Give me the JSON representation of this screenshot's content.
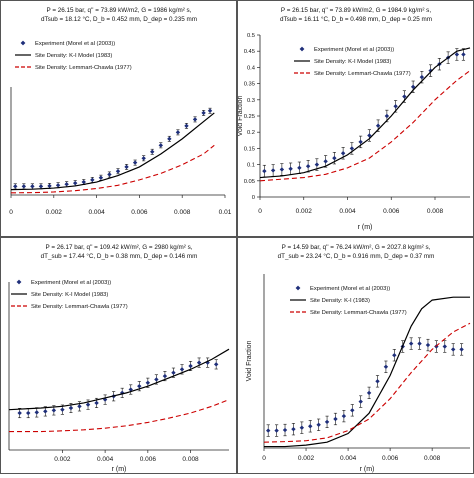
{
  "chart_data": [
    {
      "type": "line",
      "header": [
        "P = 26.15 bar, q'' = 73.89 kW/m2, G = 1986 kg/m² s,",
        "dTsub = 18.12 °C, D_b = 0.452 mm, D_dep = 0.235 mm"
      ],
      "xlabel": "",
      "ylabel": "",
      "xticks": [
        "0",
        "0.002",
        "0.004",
        "0.006",
        "0.008",
        "0.01"
      ],
      "yticks": [],
      "xlim": [
        0,
        0.01
      ],
      "ylim": [
        0,
        0.5
      ],
      "legend": "top-left",
      "series": [
        {
          "name": "Experiment (Morel et al (2003))",
          "style": "points",
          "color": "#1f2f7a",
          "x": [
            0.0002,
            0.0006,
            0.001,
            0.0014,
            0.0018,
            0.0022,
            0.0026,
            0.003,
            0.0034,
            0.0038,
            0.0042,
            0.0046,
            0.005,
            0.0054,
            0.0058,
            0.0062,
            0.0066,
            0.007,
            0.0074,
            0.0078,
            0.0082,
            0.0086,
            0.009,
            0.0093
          ],
          "y": [
            0.04,
            0.04,
            0.04,
            0.04,
            0.042,
            0.045,
            0.05,
            0.055,
            0.06,
            0.07,
            0.08,
            0.095,
            0.11,
            0.13,
            0.15,
            0.17,
            0.2,
            0.23,
            0.26,
            0.29,
            0.32,
            0.35,
            0.38,
            0.39
          ],
          "err": 0.012
        },
        {
          "name": "Site Density: K-I Model (1983)",
          "style": "solid",
          "color": "#000000",
          "x": [
            0,
            0.001,
            0.002,
            0.003,
            0.004,
            0.005,
            0.006,
            0.007,
            0.008,
            0.009,
            0.0095
          ],
          "y": [
            0.025,
            0.027,
            0.032,
            0.042,
            0.06,
            0.09,
            0.13,
            0.19,
            0.26,
            0.34,
            0.38
          ]
        },
        {
          "name": "Site Density: Lemmart-Chawla (1977)",
          "style": "dashed",
          "color": "#cc0000",
          "x": [
            0,
            0.001,
            0.002,
            0.003,
            0.004,
            0.005,
            0.006,
            0.007,
            0.008,
            0.009,
            0.0095
          ],
          "y": [
            0.01,
            0.011,
            0.014,
            0.02,
            0.03,
            0.045,
            0.07,
            0.1,
            0.14,
            0.19,
            0.23
          ]
        }
      ]
    },
    {
      "type": "line",
      "header": [
        "P = 26.15 bar, q'' = 73.89 kW/m2, G = 1984.9 kg/m² s,",
        "dTsub = 16.11 °C, D_b = 0.498 mm, D_dep = 0.25 mm"
      ],
      "xlabel": "r (m)",
      "ylabel": "Void Fraction",
      "xticks": [
        "0",
        "0.002",
        "0.004",
        "0.006",
        "0.008"
      ],
      "yticks": [
        "0",
        "0.05",
        "0.1",
        "0.15",
        "0.2",
        "0.25",
        "0.3",
        "0.35",
        "0.4",
        "0.45",
        "0.5"
      ],
      "xlim": [
        0,
        0.0096
      ],
      "ylim": [
        0,
        0.5
      ],
      "legend": "top-left",
      "series": [
        {
          "name": "Experiment (Morel et al (2003))",
          "style": "points",
          "color": "#1f2f7a",
          "x": [
            0.0002,
            0.0006,
            0.001,
            0.0014,
            0.0018,
            0.0022,
            0.0026,
            0.003,
            0.0034,
            0.0038,
            0.0042,
            0.0046,
            0.005,
            0.0054,
            0.0058,
            0.0062,
            0.0066,
            0.007,
            0.0074,
            0.0078,
            0.0082,
            0.0086,
            0.009,
            0.0093
          ],
          "y": [
            0.08,
            0.082,
            0.085,
            0.087,
            0.09,
            0.095,
            0.1,
            0.11,
            0.12,
            0.135,
            0.15,
            0.17,
            0.19,
            0.22,
            0.25,
            0.28,
            0.31,
            0.34,
            0.37,
            0.39,
            0.41,
            0.43,
            0.44,
            0.44
          ],
          "err": 0.018
        },
        {
          "name": "Site Density: K-I Model (1983)",
          "style": "solid",
          "color": "#000000",
          "x": [
            0,
            0.001,
            0.002,
            0.003,
            0.004,
            0.005,
            0.006,
            0.007,
            0.008,
            0.009,
            0.0096
          ],
          "y": [
            0.06,
            0.065,
            0.075,
            0.095,
            0.13,
            0.18,
            0.25,
            0.33,
            0.4,
            0.45,
            0.46
          ]
        },
        {
          "name": "Site Density: Lemmart-Chawla (1977)",
          "style": "dashed",
          "color": "#cc0000",
          "x": [
            0,
            0.001,
            0.002,
            0.003,
            0.004,
            0.005,
            0.006,
            0.007,
            0.008,
            0.009,
            0.0096
          ],
          "y": [
            0.05,
            0.055,
            0.06,
            0.07,
            0.09,
            0.12,
            0.17,
            0.23,
            0.3,
            0.36,
            0.39
          ]
        }
      ]
    },
    {
      "type": "line",
      "header": [
        "P = 26.17 bar, q'' = 109.42 kW/m², G = 2980 kg/m² s,",
        "dT_sub = 17.44 °C, D_b = 0.38 mm, D_dep = 0.146 mm"
      ],
      "xlabel": "r (m)",
      "ylabel": "",
      "xticks": [
        "0.002",
        "0.004",
        "0.006",
        "0.008"
      ],
      "yticks": [],
      "xlim": [
        -0.0005,
        0.0098
      ],
      "ylim": [
        0,
        0.5
      ],
      "legend": "top-left",
      "series": [
        {
          "name": "Experiment (Morel et al (2003))",
          "style": "points",
          "color": "#1f2f7a",
          "x": [
            0,
            0.0004,
            0.0008,
            0.0012,
            0.0016,
            0.002,
            0.0024,
            0.0028,
            0.0032,
            0.0036,
            0.004,
            0.0044,
            0.0048,
            0.0052,
            0.0056,
            0.006,
            0.0064,
            0.0068,
            0.0072,
            0.0076,
            0.008,
            0.0084,
            0.0088,
            0.0092
          ],
          "y": [
            0.11,
            0.11,
            0.112,
            0.115,
            0.118,
            0.12,
            0.125,
            0.13,
            0.135,
            0.14,
            0.15,
            0.16,
            0.17,
            0.18,
            0.19,
            0.2,
            0.21,
            0.22,
            0.23,
            0.24,
            0.25,
            0.26,
            0.26,
            0.255
          ],
          "err": 0.014
        },
        {
          "name": "Site Density: K-I Model (1983)",
          "style": "solid",
          "color": "#000000",
          "x": [
            -0.0005,
            0.001,
            0.002,
            0.003,
            0.004,
            0.005,
            0.006,
            0.007,
            0.008,
            0.009,
            0.0098
          ],
          "y": [
            0.12,
            0.125,
            0.13,
            0.14,
            0.155,
            0.17,
            0.19,
            0.215,
            0.24,
            0.27,
            0.3
          ]
        },
        {
          "name": "Site Density: Lemmart-Chawla (1977)",
          "style": "dashed",
          "color": "#cc0000",
          "x": [
            -0.0005,
            0.001,
            0.002,
            0.003,
            0.004,
            0.005,
            0.006,
            0.007,
            0.008,
            0.009,
            0.0098
          ],
          "y": [
            0.055,
            0.055,
            0.057,
            0.06,
            0.065,
            0.072,
            0.082,
            0.095,
            0.11,
            0.13,
            0.15
          ]
        }
      ]
    },
    {
      "type": "line",
      "header": [
        "P = 14.59 bar, q'' = 76.24 kW/m², G = 2027.8 kg/m² s,",
        "dT_sub = 23.24 °C, D_b = 0.916 mm, D_dep = 0.37 mm"
      ],
      "xlabel": "r (m)",
      "ylabel": "Void Fraction",
      "xticks": [
        "0",
        "0.002",
        "0.004",
        "0.006",
        "0.008"
      ],
      "yticks": [],
      "xlim": [
        0,
        0.0098
      ],
      "ylim": [
        0,
        0.6
      ],
      "legend": "top-left",
      "series": [
        {
          "name": "Experiment (Morel et al (2003))",
          "style": "points",
          "color": "#1f2f7a",
          "x": [
            0.0002,
            0.0006,
            0.001,
            0.0014,
            0.0018,
            0.0022,
            0.0026,
            0.003,
            0.0034,
            0.0038,
            0.0042,
            0.0046,
            0.005,
            0.0054,
            0.0058,
            0.0062,
            0.0066,
            0.007,
            0.0074,
            0.0078,
            0.0082,
            0.0086,
            0.009,
            0.0094
          ],
          "y": [
            0.06,
            0.06,
            0.062,
            0.065,
            0.07,
            0.075,
            0.08,
            0.09,
            0.1,
            0.11,
            0.13,
            0.16,
            0.19,
            0.23,
            0.28,
            0.32,
            0.35,
            0.36,
            0.36,
            0.355,
            0.35,
            0.35,
            0.34,
            0.34
          ],
          "err": 0.02
        },
        {
          "name": "Site Density: K-I (1983)",
          "style": "solid",
          "color": "#000000",
          "x": [
            0,
            0.001,
            0.002,
            0.003,
            0.004,
            0.005,
            0.006,
            0.007,
            0.0075,
            0.008,
            0.009,
            0.0098
          ],
          "y": [
            0.005,
            0.005,
            0.01,
            0.02,
            0.05,
            0.12,
            0.25,
            0.42,
            0.48,
            0.51,
            0.52,
            0.52
          ]
        },
        {
          "name": "Site Density: Lemmart-Chawla (1977)",
          "style": "dashed",
          "color": "#cc0000",
          "x": [
            0,
            0.001,
            0.002,
            0.003,
            0.004,
            0.005,
            0.006,
            0.007,
            0.008,
            0.009,
            0.0098
          ],
          "y": [
            0.02,
            0.022,
            0.025,
            0.035,
            0.06,
            0.1,
            0.17,
            0.26,
            0.34,
            0.4,
            0.43
          ]
        }
      ]
    }
  ]
}
